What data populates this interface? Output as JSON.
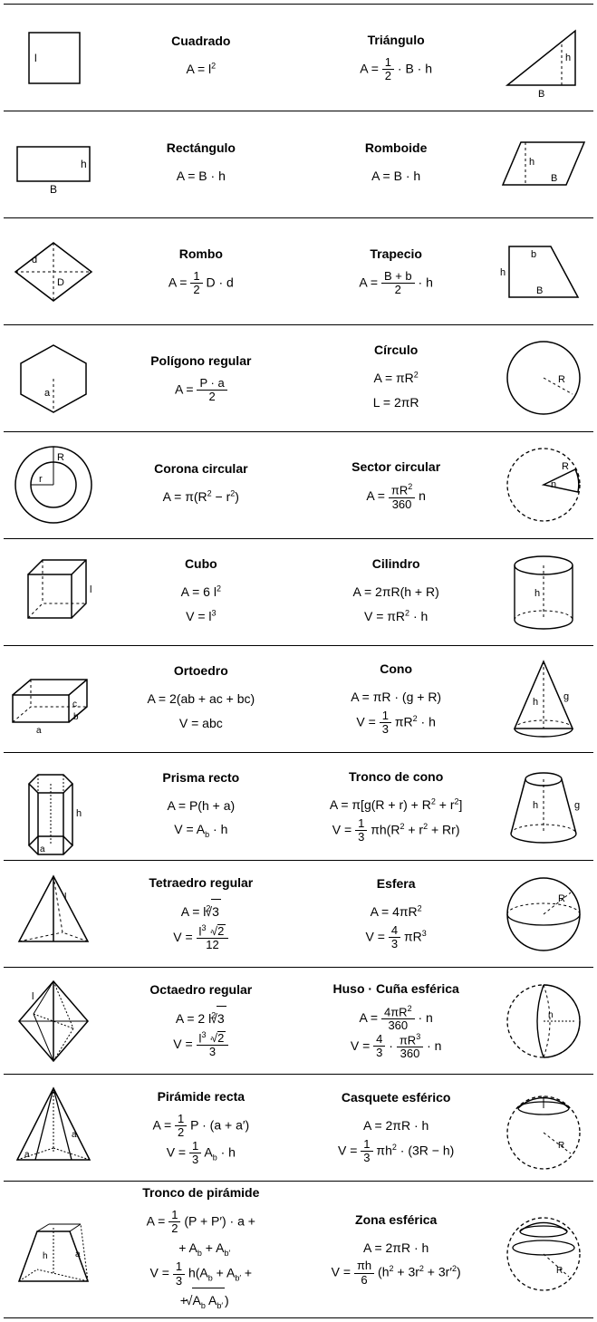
{
  "rows": [
    {
      "left": {
        "name": "Cuadrado",
        "formulas": [
          "A = l<span class='sup'>2</span>"
        ]
      },
      "right": {
        "name": "Triángulo",
        "formulas": [
          "A = <span class='frac'><span class='num'>1</span><span class='den'>2</span></span> · B · h"
        ]
      }
    },
    {
      "left": {
        "name": "Rectángulo",
        "formulas": [
          "A = B · h"
        ]
      },
      "right": {
        "name": "Romboide",
        "formulas": [
          "A = B · h"
        ]
      }
    },
    {
      "left": {
        "name": "Rombo",
        "formulas": [
          "A = <span class='frac'><span class='num'>1</span><span class='den'>2</span></span> D · d"
        ]
      },
      "right": {
        "name": "Trapecio",
        "formulas": [
          "A = <span class='frac'><span class='num'>B + b</span><span class='den'>2</span></span> · h"
        ]
      }
    },
    {
      "left": {
        "name": "Polígono regular",
        "formulas": [
          "A = <span class='frac'><span class='num'>P · a</span><span class='den'>2</span></span>"
        ]
      },
      "right": {
        "name": "Círculo",
        "formulas": [
          "A = πR<span class='sup'>2</span>",
          "L = 2πR"
        ]
      }
    },
    {
      "left": {
        "name": "Corona circular",
        "formulas": [
          "A = π(R<span class='sup'>2</span> − r<span class='sup'>2</span>)"
        ]
      },
      "right": {
        "name": "Sector circular",
        "formulas": [
          "A = <span class='frac'><span class='num'>πR<span class='sup'>2</span></span><span class='den'>360</span></span> n"
        ]
      }
    },
    {
      "left": {
        "name": "Cubo",
        "formulas": [
          "A = 6 l<span class='sup'>2</span>",
          "V = l<span class='sup'>3</span>"
        ]
      },
      "right": {
        "name": "Cilindro",
        "formulas": [
          "A = 2πR(h + R)",
          "V = πR<span class='sup'>2</span> · h"
        ]
      }
    },
    {
      "left": {
        "name": "Ortoedro",
        "formulas": [
          "A = 2(ab + ac + bc)",
          "V = abc"
        ]
      },
      "right": {
        "name": "Cono",
        "formulas": [
          "A = πR · (g + R)",
          "V = <span class='frac'><span class='num'>1</span><span class='den'>3</span></span> πR<span class='sup'>2</span> · h"
        ]
      }
    },
    {
      "left": {
        "name": "Prisma recto",
        "formulas": [
          "A = P(h + a)",
          "V = A<span class='sub'>b</span> · h"
        ]
      },
      "right": {
        "name": "Tronco de cono",
        "formulas": [
          "A = π[g(R + r) + R<span class='sup'>2</span> + r<span class='sup'>2</span>]",
          "V = <span class='frac'><span class='num'>1</span><span class='den'>3</span></span> πh(R<span class='sup'>2</span> + r<span class='sup'>2</span> + Rr)"
        ]
      }
    },
    {
      "left": {
        "name": "Tetraedro regular",
        "formulas": [
          "A = l<span class='sup'>2</span><span class='sqrt'>3</span>",
          "V = <span class='frac'><span class='num'>l<span class='sup'>3</span> · <span class='sqrt'>2</span></span><span class='den'>12</span></span>"
        ]
      },
      "right": {
        "name": "Esfera",
        "formulas": [
          "A = 4πR<span class='sup'>2</span>",
          "V = <span class='frac'><span class='num'>4</span><span class='den'>3</span></span> πR<span class='sup'>3</span>"
        ]
      }
    },
    {
      "left": {
        "name": "Octaedro regular",
        "formulas": [
          "A = 2 l<span class='sup'>2</span><span class='sqrt'>3</span>",
          "V = <span class='frac'><span class='num'>l<span class='sup'>3</span> · <span class='sqrt'>2</span></span><span class='den'>3</span></span>"
        ]
      },
      "right": {
        "name": "Huso · Cuña esférica",
        "formulas": [
          "A = <span class='frac'><span class='num'>4πR<span class='sup'>2</span></span><span class='den'>360</span></span> · n",
          "V = <span class='frac'><span class='num'>4</span><span class='den'>3</span></span> · <span class='frac'><span class='num'>πR<span class='sup'>3</span></span><span class='den'>360</span></span> · n"
        ]
      }
    },
    {
      "left": {
        "name": "Pirámide recta",
        "formulas": [
          "A = <span class='frac'><span class='num'>1</span><span class='den'>2</span></span> P · (a + a′)",
          "V = <span class='frac'><span class='num'>1</span><span class='den'>3</span></span> A<span class='sub'>b</span> · h"
        ]
      },
      "right": {
        "name": "Casquete esférico",
        "formulas": [
          "A = 2πR · h",
          "V = <span class='frac'><span class='num'>1</span><span class='den'>3</span></span> πh<span class='sup'>2</span> · (3R − h)"
        ]
      }
    },
    {
      "left": {
        "name": "Tronco de pirámide",
        "formulas": [
          "A = <span class='frac'><span class='num'>1</span><span class='den'>2</span></span> (P + P′) · a +<br>&nbsp;&nbsp;+ A<span class='sub'>b</span> + A<span class='sub'>b′</span>",
          "V = <span class='frac'><span class='num'>1</span><span class='den'>3</span></span> h(A<span class='sub'>b</span> + A<span class='sub'>b′</span> +<br>&nbsp;&nbsp;+ <span class='sqrt'>A<span class='sub'>b</span> A<span class='sub'>b′</span></span>)"
        ]
      },
      "right": {
        "name": "Zona esférica",
        "formulas": [
          "A = 2πR · h",
          "V = <span class='frac'><span class='num'>πh</span><span class='den'>6</span></span> (h<span class='sup'>2</span> + 3r<span class='sup'>2</span> + 3r′<span class='sup'>2</span>)"
        ]
      }
    }
  ],
  "figs_left": [
    "<svg width='90' height='80'><rect x='18' y='12' width='56' height='56' fill='none' stroke='#000' stroke-width='1.5'/><text x='24' y='44' font-size='12'>l</text></svg>",
    "<svg width='100' height='70'><rect x='10' y='15' width='80' height='38' fill='none' stroke='#000' stroke-width='1.5'/><text x='80' y='38' font-size='12'>h</text><text x='46' y='66' font-size='12'>B</text></svg>",
    "<svg width='100' height='80'><polygon points='50,8 92,40 50,72 8,40' fill='none' stroke='#000' stroke-width='1.5'/><line x1='50' y1='8' x2='50' y2='72' stroke='#000' stroke-dasharray='3,3'/><line x1='8' y1='40' x2='92' y2='40' stroke='#000' stroke-dasharray='3,3'/><text x='26' y='30' font-size='11'>d</text><text x='54' y='55' font-size='11'>D</text></svg>",
    "<svg width='100' height='90'><polygon points='50,8 86,28 86,62 50,82 14,62 14,28' fill='none' stroke='#000' stroke-width='1.5'/><line x1='50' y1='45' x2='50' y2='82' stroke='#000' stroke-dasharray='3,3'/><text x='40' y='64' font-size='11'>a</text></svg>",
    "<svg width='100' height='95'><circle cx='50' cy='47' r='42' fill='none' stroke='#000' stroke-width='1.5'/><circle cx='50' cy='47' r='25' fill='none' stroke='#000' stroke-width='1.5'/><line x1='50' y1='47' x2='50' y2='5' stroke='#000'/><line x1='50' y1='47' x2='25' y2='47' stroke='#000'/><text x='54' y='20' font-size='11'>R</text><text x='34' y='44' font-size='11'>r</text></svg>",
    "<svg width='100' height='95'><polygon points='22,28 70,28 70,76 22,76' fill='none' stroke='#000' stroke-width='1.5'/><polyline points='22,28 38,12 86,12 86,60 70,76' fill='none' stroke='#000' stroke-width='1.5'/><line x1='70' y1='28' x2='86' y2='12' stroke='#000' stroke-width='1.5'/><polyline points='22,76 38,60 86,60' fill='none' stroke='#000' stroke-dasharray='3,3'/><line x1='38' y1='12' x2='38' y2='60' stroke='#000' stroke-dasharray='3,3'/><text x='90' y='48' font-size='11'>l</text></svg>",
    "<svg width='110' height='80'><polygon points='8,35 70,35 70,65 8,65' fill='none' stroke='#000' stroke-width='1.5'/><polyline points='8,35 28,18 90,18 90,48 70,65' fill='none' stroke='#000' stroke-width='1.5'/><line x1='70' y1='35' x2='90' y2='18' stroke='#000' stroke-width='1.5'/><polyline points='8,65 28,48 90,48' fill='none' stroke='#000' stroke-dasharray='3,3'/><line x1='28' y1='18' x2='28' y2='48' stroke='#000' stroke-dasharray='3,3'/><text x='34' y='77' font-size='10'>a</text><text x='75' y='62' font-size='10'>b</text><text x='74' y='48' font-size='10'>c</text></svg>",
    "<svg width='90' height='110'><polygon points='28,20 56,20 66,30 56,40 28,40 18,30' fill='none' stroke='#000' stroke-width='1.5'/><polygon points='28,88 56,88 66,98 56,108 28,108 18,98' fill='none' stroke='#000' stroke-width='1.5'/><line x1='18' y1='30' x2='18' y2='98' stroke='#000' stroke-width='1.5'/><line x1='66' y1='30' x2='66' y2='98' stroke='#000' stroke-width='1.5'/><line x1='28' y1='40' x2='28' y2='108' stroke='#000' stroke-width='1.5'/><line x1='56' y1='40' x2='56' y2='108' stroke='#000' stroke-width='1.5'/><line x1='28' y1='20' x2='28' y2='88' stroke='#000' stroke-dasharray='2,2'/><line x1='56' y1='20' x2='56' y2='88' stroke='#000' stroke-dasharray='2,2'/><line x1='42' y1='30' x2='42' y2='98' stroke='#000' stroke-dasharray='2,2'/><text x='70' y='66' font-size='11'>h</text><text x='30' y='105' font-size='10'>a</text></svg>",
    "<svg width='100' height='100'><polygon points='50,8 88,80 12,80' fill='none' stroke='#000' stroke-width='1.5'/><line x1='50' y1='8' x2='50' y2='80' stroke='#000' stroke-width='1.5'/><line x1='12' y1='80' x2='60' y2='70' stroke='#000' stroke-dasharray='3,3'/><line x1='88' y1='80' x2='60' y2='70' stroke='#000' stroke-dasharray='3,3'/><line x1='50' y1='8' x2='60' y2='70' stroke='#000' stroke-dasharray='3,3'/><text x='62' y='34' font-size='11'>l</text></svg>",
    "<svg width='100' height='100'><polygon points='50,6 88,50 50,94 12,50' fill='none' stroke='#000' stroke-width='1.5'/><line x1='50' y1='6' x2='50' y2='94' stroke='#000' stroke-width='1.5'/><line x1='12' y1='50' x2='88' y2='50' stroke='#000' stroke-width='1'/><line x1='28' y1='42' x2='72' y2='58' stroke='#000' stroke-dasharray='2,2'/><line x1='50' y1='6' x2='28' y2='42' stroke='#000'/><line x1='50' y1='6' x2='72' y2='58' stroke='#000' stroke-dasharray='2,2'/><line x1='50' y1='94' x2='28' y2='42' stroke='#000'/><line x1='50' y1='94' x2='72' y2='58' stroke='#000' stroke-dasharray='2,2'/><text x='26' y='26' font-size='11'>l</text></svg>",
    "<svg width='100' height='100'><polygon points='50,6 90,85 10,85' fill='none' stroke='#000' stroke-width='1.5'/><line x1='50' y1='6' x2='30' y2='85' stroke='#000' stroke-width='1.3'/><line x1='50' y1='6' x2='70' y2='85' stroke='#000' stroke-width='1.3'/><line x1='50' y1='6' x2='50' y2='78' stroke='#000' stroke-dasharray='2,2'/><line x1='10' y1='85' x2='50' y2='72' stroke='#000' stroke-dasharray='2,2'/><line x1='90' y1='85' x2='50' y2='72' stroke='#000' stroke-dasharray='2,2'/><line x1='50' y1='6' x2='50' y2='72' stroke='#000' stroke-dasharray='2,2'/><text x='70' y='60' font-size='10'>a</text><text x='18' y='82' font-size='10'>a</text></svg>",
    "<svg width='100' height='100'><polygon points='32,30 68,30 88,85 12,85' fill='none' stroke='#000' stroke-width='1.5'/><line x1='32' y1='30' x2='45' y2='22' stroke='#000'/><line x1='68' y1='30' x2='80' y2='22' stroke='#000'/><line x1='45' y1='22' x2='80' y2='22' stroke='#000'/><line x1='88' y1='85' x2='80' y2='22' stroke='#000' stroke-dasharray='2,2'/><line x1='12' y1='85' x2='32' y2='72' stroke='#000' stroke-dasharray='2,2'/><line x1='88' y1='85' x2='32' y2='72' stroke='#000' stroke-dasharray='2,2'/><line x1='50' y1='26' x2='50' y2='78' stroke='#000' stroke-dasharray='2,2'/><text x='38' y='60' font-size='10'>h</text><text x='74' y='58' font-size='10'>a</text></svg>"
  ],
  "figs_right": [
    "<svg width='100' height='90'><polygon points='10,75 85,75 85,15' fill='none' stroke='#000' stroke-width='1.5'/><line x1='70' y1='75' x2='70' y2='27' stroke='#000' stroke-dasharray='3,3'/><text x='74' y='48' font-size='11'>h</text><text x='44' y='88' font-size='11'>B</text></svg>",
    "<svg width='100' height='80'><polygon points='25,15 95,15 75,62 5,62' fill='none' stroke='#000' stroke-width='1.5'/><line x1='30' y1='15' x2='30' y2='62' stroke='#000' stroke-dasharray='3,3'/><text x='34' y='40' font-size='11'>h</text><text x='58' y='58' font-size='11'>B</text></svg>",
    "<svg width='100' height='80'><polygon points='12,12 58,12 88,68 12,68' fill='none' stroke='#000' stroke-width='1.5'/><text x='36' y='24' font-size='11'>b</text><text x='2' y='44' font-size='11'>h</text><text x='42' y='64' font-size='11'>B</text></svg>",
    "<svg width='100' height='95'><circle cx='50' cy='47' r='40' fill='none' stroke='#000' stroke-width='1.5'/><line x1='50' y1='47' x2='82' y2='65' stroke='#000' stroke-dasharray='3,3'/><text x='66' y='52' font-size='11'>R</text></svg>",
    "<svg width='100' height='95'><circle cx='50' cy='47' r='40' fill='none' stroke='#000' stroke-width='1.3' stroke-dasharray='4,3'/><path d='M50,47 L85,30 A40 40 0 0 1 88,55 Z' fill='none' stroke='#000' stroke-width='1.5'/><text x='70' y='30' font-size='11'>R</text><text x='58' y='50' font-size='11'>n</text></svg>",
    "<svg width='100' height='95'><ellipse cx='50' cy='18' rx='32' ry='10' fill='none' stroke='#000' stroke-width='1.4'/><path d='M18,78 A32 10 0 0 0 82,78' fill='none' stroke='#000' stroke-width='1.4'/><path d='M18,78 A32 10 0 0 1 82,78' fill='none' stroke='#000' stroke-dasharray='3,3'/><line x1='18' y1='18' x2='18' y2='78' stroke='#000' stroke-width='1.4'/><line x1='82' y1='18' x2='82' y2='78' stroke='#000' stroke-width='1.4'/><line x1='50' y1='18' x2='50' y2='78' stroke='#000' stroke-dasharray='3,3'/><text x='40' y='52' font-size='11'>h</text></svg>",
    "<svg width='100' height='100'><polygon points='50,8 82,82 18,82' fill='none' stroke='#000' stroke-width='1.5'/><path d='M18,82 A32 9 0 0 0 82,82' fill='none' stroke='#000' stroke-width='1.4'/><path d='M18,82 A32 9 0 0 1 82,82' fill='none' stroke='#000' stroke-dasharray='3,3'/><line x1='50' y1='8' x2='50' y2='82' stroke='#000' stroke-dasharray='3,3'/><text x='38' y='56' font-size='11'>h</text><text x='72' y='50' font-size='11'>g</text></svg>",
    "<svg width='100' height='100'><line x1='30' y1='20' x2='14' y2='80' stroke='#000' stroke-width='1.5'/><line x1='70' y1='20' x2='86' y2='80' stroke='#000' stroke-width='1.5'/><ellipse cx='50' cy='20' rx='20' ry='7' fill='none' stroke='#000' stroke-width='1.4'/><path d='M14,80 A36 10 0 0 0 86,80' fill='none' stroke='#000' stroke-width='1.4'/><path d='M14,80 A36 10 0 0 1 86,80' fill='none' stroke='#000' stroke-dasharray='3,3'/><line x1='50' y1='20' x2='50' y2='80' stroke='#000' stroke-dasharray='3,3'/><text x='38' y='52' font-size='11'>h</text><text x='84' y='52' font-size='11'>g</text></svg>",
    "<svg width='100' height='100'><circle cx='50' cy='50' r='40' fill='none' stroke='#000' stroke-width='1.5'/><path d='M10,50 A40 12 0 0 0 90,50' fill='none' stroke='#000' stroke-width='1.3'/><path d='M10,50 A40 12 0 0 1 90,50' fill='none' stroke='#000' stroke-dasharray='3,3'/><line x1='50' y1='50' x2='80' y2='26' stroke='#000' stroke-dasharray='3,3'/><text x='66' y='36' font-size='11'>R</text></svg>",
    "<svg width='100' height='100'><circle cx='50' cy='50' r='40' fill='none' stroke='#000' stroke-width='1.3' stroke-dasharray='4,3'/><path d='M50,10 A40 40 0 0 1 50,90' fill='none' stroke='#000' stroke-width='1.4'/><path d='M50,10 Q36,50 50,90' fill='none' stroke='#000' stroke-width='1.4'/><path d='M50,10 Q64,50 50,90' fill='none' stroke='#000' stroke-dasharray='3,3'/><line x1='50' y1='50' x2='86' y2='50' stroke='#000' stroke-dasharray='2,2'/><text x='55' y='46' font-size='10'>n</text></svg>",
    "<svg width='100' height='100'><circle cx='50' cy='55' r='40' fill='none' stroke='#000' stroke-width='1.3' stroke-dasharray='4,3'/><path d='M22,28 A40 40 0 0 1 78,28' fill='none' stroke='#000' stroke-width='1.5'/><ellipse cx='50' cy='28' rx='28' ry='7' fill='none' stroke='#000' stroke-width='1.3'/><line x1='50' y1='55' x2='80' y2='78' stroke='#000' stroke-dasharray='3,3'/><line x1='50' y1='15' x2='50' y2='28' stroke='#000'/><text x='66' y='72' font-size='10'>R</text></svg>",
    "<svg width='100' height='100'><circle cx='50' cy='55' r='40' fill='none' stroke='#000' stroke-width='1.3' stroke-dasharray='4,3'/><path d='M24,30 A40 40 0 0 1 76,30' fill='none' stroke='#000' stroke-width='1.4'/><ellipse cx='50' cy='30' rx='26' ry='6' fill='none' stroke='#000' stroke-width='1.3'/><ellipse cx='50' cy='48' rx='34' ry='8' fill='none' stroke='#000' stroke-width='1.3'/><line x1='50' y1='55' x2='78' y2='80' stroke='#000' stroke-dasharray='3,3'/><text x='64' y='76' font-size='10'>R</text></svg>"
  ]
}
